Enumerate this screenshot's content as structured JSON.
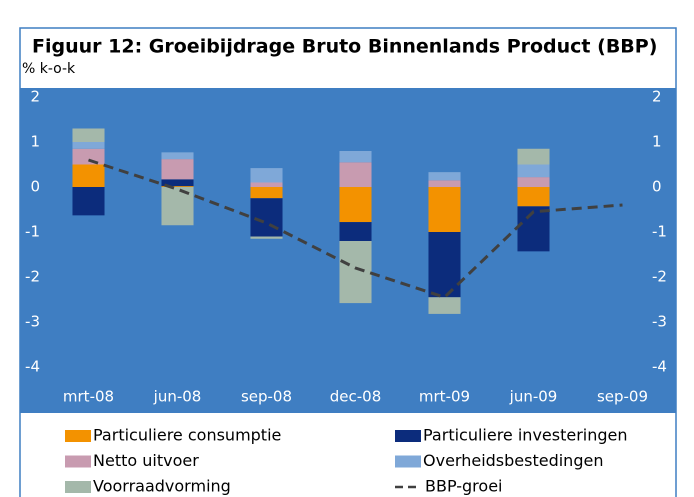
{
  "chart_data": {
    "type": "stacked_bar_line",
    "title": "Figuur 12: Groeibijdrage Bruto Binnenlands Product (BBP)",
    "subtitle": "% k-o-k",
    "categories": [
      "mrt-08",
      "jun-08",
      "sep-08",
      "dec-08",
      "mrt-09",
      "jun-09",
      "sep-09"
    ],
    "series": [
      {
        "name": "Particuliere consumptie",
        "color": "#f39200",
        "values": [
          0.5,
          0.02,
          -0.25,
          -0.78,
          -1.0,
          -0.43,
          null
        ]
      },
      {
        "name": "Particuliere investeringen",
        "color": "#0c2c7c",
        "values": [
          -0.63,
          0.15,
          -0.85,
          -0.42,
          -1.45,
          -1.0,
          null
        ]
      },
      {
        "name": "Netto uitvoer",
        "color": "#c89bb0",
        "values": [
          0.35,
          0.45,
          0.1,
          0.55,
          0.15,
          0.22,
          null
        ]
      },
      {
        "name": "Overheidsbestedingen",
        "color": "#7fa8d8",
        "values": [
          0.15,
          0.15,
          0.32,
          0.25,
          0.18,
          0.28,
          null
        ]
      },
      {
        "name": "Voorraadvorming",
        "color": "#a4b8aa",
        "values": [
          0.3,
          -0.85,
          -0.05,
          -1.38,
          -0.37,
          0.35,
          null
        ]
      },
      {
        "name": "BBP-groei",
        "type": "line",
        "color": "#404040",
        "dashed": true,
        "values": [
          0.6,
          -0.05,
          -0.8,
          -1.8,
          -2.45,
          -0.55,
          -0.4
        ]
      }
    ],
    "ylim": [
      -4,
      2
    ],
    "yticks": [
      -4,
      -3,
      -2,
      -1,
      0,
      1,
      2
    ],
    "y2lim": [
      -4,
      2
    ],
    "y2ticks": [
      -4,
      -3,
      -2,
      -1,
      0,
      1,
      2
    ],
    "plot_background": "#3f7ec2"
  }
}
